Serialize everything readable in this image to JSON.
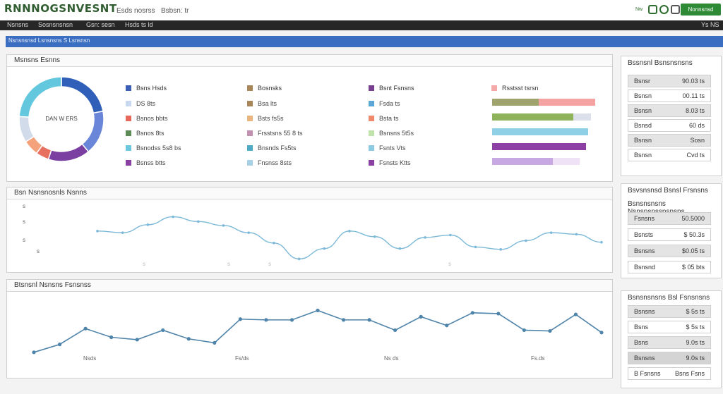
{
  "header": {
    "brand": "RNNNOGSNVESNT",
    "links": [
      "Esds nosrss",
      "Bsbsn: tr"
    ],
    "icons": [
      "status-icon",
      "refresh-icon",
      "grid-icon"
    ],
    "tiny_label": "Nw",
    "button_label": "Nonnsnsd"
  },
  "nav": {
    "items": [
      "Nsnsns",
      "Sosnsnsnsn",
      "Gsn: sesn",
      "Hsds ts ld"
    ],
    "right": "Ys NS"
  },
  "bluebar": {
    "text": "Nsnsnsnsd Lsnsnsns S Lsnsnsn"
  },
  "donut_panel": {
    "title": "Msnsns Esnns",
    "center_label": "DAN W ERS",
    "colors": [
      "#2f5fb8",
      "#6a86d8",
      "#7a3fa0",
      "#e87060",
      "#f4a27c",
      "#d2dbe9",
      "#63c7de"
    ],
    "values": [
      22,
      17,
      16,
      5,
      6,
      10,
      24
    ],
    "legend_columns": [
      {
        "header": {
          "label": "Bsns Hsds",
          "color": "#3a5fb5"
        },
        "items": [
          {
            "label": "DS 8ts",
            "color": "#c8d8ee"
          },
          {
            "label": "Bsnos bbts",
            "color": "#e8685e"
          },
          {
            "label": "Bsnos 8ts",
            "color": "#5e8a55"
          },
          {
            "label": "Bsnodss 5s8 bs",
            "color": "#6cc6dc"
          },
          {
            "label": "Bsnss btts",
            "color": "#8a3fa2"
          }
        ]
      },
      {
        "header": {
          "label": "Bosnsks",
          "color": "#a9865a"
        },
        "items": [
          {
            "label": "Bsa lts",
            "color": "#a9865a"
          },
          {
            "label": "Bsts fs5s",
            "color": "#e8b57c"
          },
          {
            "label": "Frsstsns 55 8 ts",
            "color": "#c28fb0"
          },
          {
            "label": "Bnsnds Fs5ts",
            "color": "#52a9c4"
          },
          {
            "label": "Fnsnss 8sts",
            "color": "#a7cfe6"
          }
        ]
      },
      {
        "header": {
          "label": "Bsnt Fsnsns",
          "color": "#7a3f8f"
        },
        "items": [
          {
            "label": "Fsda ts",
            "color": "#5aa7d6"
          },
          {
            "label": "Bsta ts",
            "color": "#f08a6e"
          },
          {
            "label": "Bsnsns 5t5s",
            "color": "#bfe3a9"
          },
          {
            "label": "Fsnts Vts",
            "color": "#8dcbe4"
          },
          {
            "label": "Fsnsts Ktts",
            "color": "#8a3fa2"
          }
        ]
      }
    ],
    "bars": {
      "header": {
        "label": "Rsstsst tsrsn",
        "color": "#f4a8a8"
      },
      "items": [
        {
          "segments": [
            {
              "value": 0.45,
              "color": "#9ea46b"
            },
            {
              "value": 0.55,
              "color": "#f4a2a2"
            }
          ]
        },
        {
          "segments": [
            {
              "value": 0.79,
              "color": "#8fb35a"
            },
            {
              "value": 0.17,
              "color": "#dbe0ea"
            }
          ]
        },
        {
          "segments": [
            {
              "value": 0.93,
              "color": "#8fd0e6"
            }
          ]
        },
        {
          "segments": [
            {
              "value": 0.91,
              "color": "#8e3fa6"
            }
          ]
        },
        {
          "segments": [
            {
              "value": 0.59,
              "color": "#c7a8e2"
            },
            {
              "value": 0.26,
              "color": "#f0e2f6"
            }
          ]
        }
      ]
    }
  },
  "line_panel_1": {
    "title": "Bsn Nsnsnosnls Nsnns",
    "y_ticks": [
      "s",
      "s",
      "s",
      "s"
    ],
    "x_ticks": [
      "s",
      "s",
      "s",
      "s"
    ],
    "line_color": "#7cb9d8",
    "chart_data": {
      "type": "line",
      "x": [
        1,
        2,
        3,
        4,
        5,
        6,
        7,
        8,
        9,
        10,
        11,
        12,
        13,
        14,
        15,
        16,
        17,
        18,
        19,
        20,
        21
      ],
      "y": [
        40,
        38,
        48,
        58,
        52,
        47,
        38,
        25,
        5,
        18,
        40,
        33,
        18,
        32,
        35,
        20,
        17,
        28,
        38,
        36,
        26
      ],
      "ylim": [
        0,
        70
      ]
    }
  },
  "line_panel_2": {
    "title": "Btsnsnl Nsnsns Fsnsnss",
    "x_ticks": [
      "Nsds",
      "Fs/ds",
      "Ns ds",
      "Fs.ds"
    ],
    "line_color": "#4f84aa",
    "chart_data": {
      "type": "line",
      "x": [
        1,
        2,
        3,
        4,
        5,
        6,
        7,
        8,
        9,
        10,
        11,
        12,
        13,
        14,
        15,
        16,
        17,
        18,
        19,
        20,
        21,
        22,
        23
      ],
      "y": [
        10,
        20,
        40,
        29,
        26,
        38,
        27,
        22,
        52,
        51,
        51,
        63,
        51,
        51,
        38,
        55,
        44,
        60,
        59,
        38,
        37,
        58,
        35
      ],
      "ylim": [
        0,
        75
      ]
    }
  },
  "side_panels": [
    {
      "title": "Bssnsnl Bsnsnsnsns",
      "rows": [
        {
          "label": "Bsnsr",
          "value": "90.03 ts",
          "shade": "#e4e4e4"
        },
        {
          "label": "Bsnsn",
          "value": "00.11 ts",
          "shade": "#ffffff"
        },
        {
          "label": "Bsnsn",
          "value": "8.03 ts",
          "shade": "#e4e4e4"
        },
        {
          "label": "Bsnsd",
          "value": "60 ds",
          "shade": "#ffffff"
        },
        {
          "label": "Bsnsn",
          "value": "Sosn",
          "shade": "#e4e4e4"
        },
        {
          "label": "Bsnsn",
          "value": "Cvd ts",
          "shade": "#ffffff"
        }
      ]
    },
    {
      "title": "Bsvsnsnsd Bsnsl Frsnsns",
      "subtitle": "Bsnsnsnsns Nsnsnsnssnsnsns",
      "rows": [
        {
          "label": "Fsnsns",
          "value": "50.5000",
          "shade": "#e4e4e4"
        },
        {
          "label": "Bsnsts",
          "value": "$ 50.3s",
          "shade": "#ffffff"
        },
        {
          "label": "Bsnsns",
          "value": "$0.05 ts",
          "shade": "#e4e4e4"
        },
        {
          "label": "Bsnsnd",
          "value": "$ 05 bts",
          "shade": "#ffffff"
        }
      ]
    },
    {
      "title": "Bsnsnsnsns Bsl Fsnsnsns",
      "rows": [
        {
          "label": "Bsnsns",
          "value": "$ 5s ts",
          "shade": "#e4e4e4"
        },
        {
          "label": "Bsns",
          "value": "$ 5s ts",
          "shade": "#ffffff"
        },
        {
          "label": "Bsns",
          "value": "9.0s ts",
          "shade": "#e4e4e4"
        },
        {
          "label": "Bsnsns",
          "value": "9.0s ts",
          "shade": "#d4d4d4"
        },
        {
          "label": "B Fsnsns",
          "value": "Bsns  Fsns",
          "shade": "#ffffff"
        }
      ]
    }
  ]
}
